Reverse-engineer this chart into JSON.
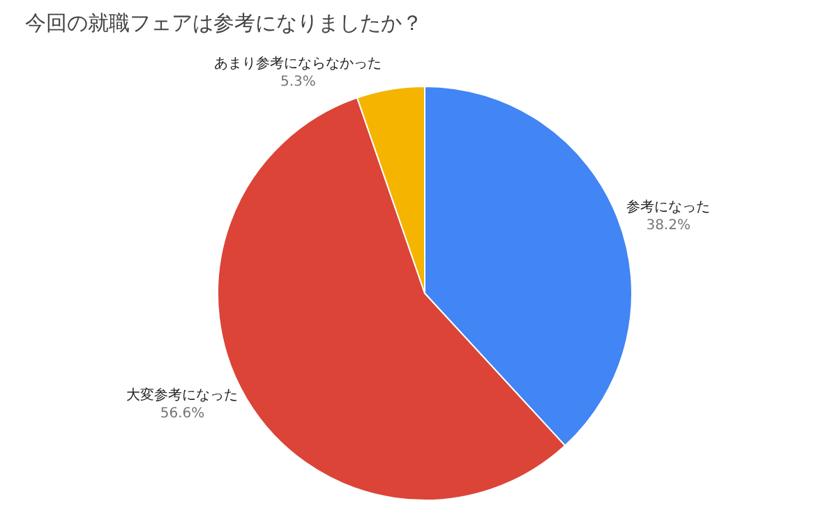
{
  "chart_data": {
    "type": "pie",
    "title": "今回の就職フェアは参考になりましたか？",
    "categories": [
      "参考になった",
      "大変参考になった",
      "あまり参考にならなかった"
    ],
    "values": [
      38.2,
      56.6,
      5.3
    ],
    "value_labels": [
      "38.2%",
      "56.6%",
      "5.3%"
    ],
    "colors": [
      "#4285f4",
      "#db4437",
      "#f4b400"
    ],
    "legend": false
  }
}
